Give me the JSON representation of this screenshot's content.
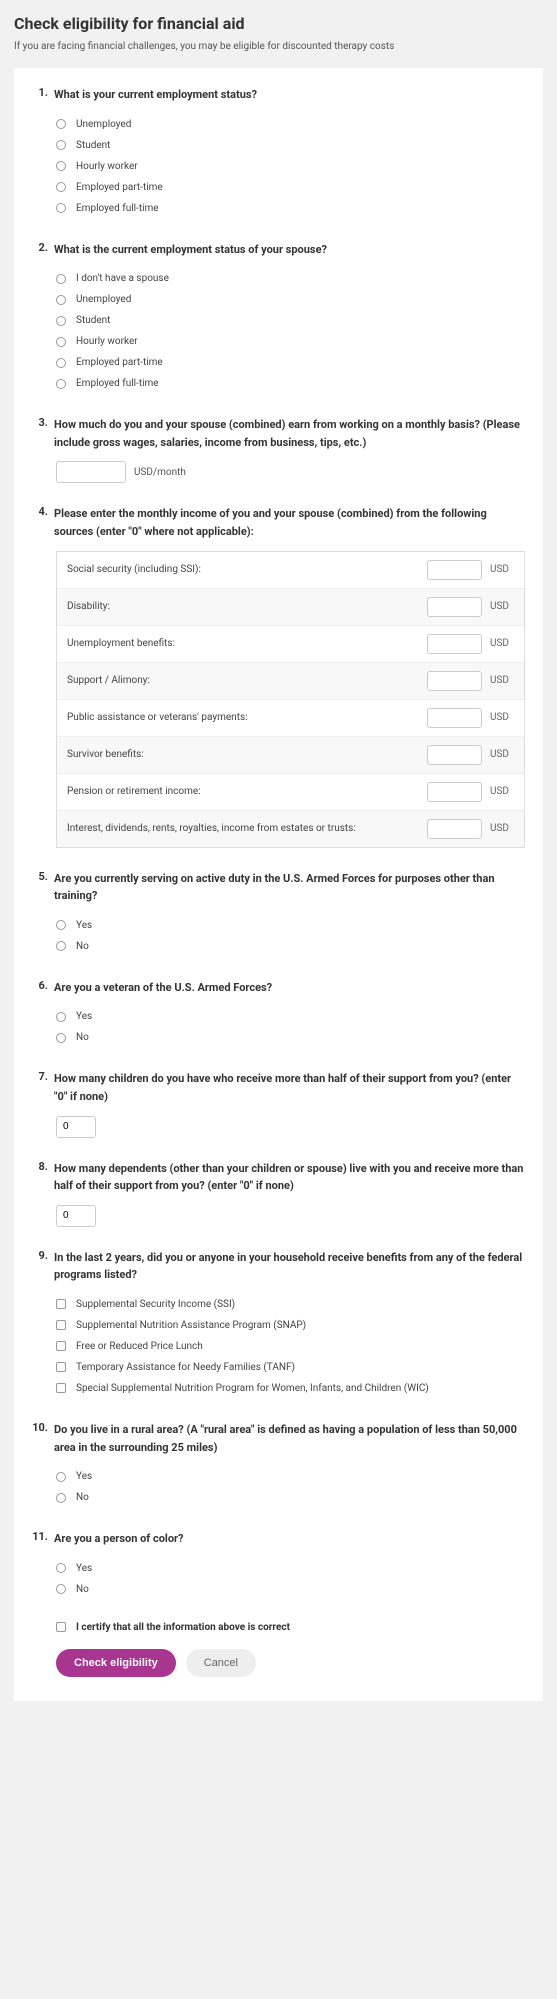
{
  "page": {
    "title": "Check eligibility for financial aid",
    "subtitle": "If you are facing financial challenges, you may be eligible for discounted therapy costs"
  },
  "questions": {
    "q1": {
      "num": "1.",
      "text": "What is your current employment status?",
      "options": [
        "Unemployed",
        "Student",
        "Hourly worker",
        "Employed part-time",
        "Employed full-time"
      ]
    },
    "q2": {
      "num": "2.",
      "text": "What is the current employment status of your spouse?",
      "options": [
        "I don't have a spouse",
        "Unemployed",
        "Student",
        "Hourly worker",
        "Employed part-time",
        "Employed full-time"
      ]
    },
    "q3": {
      "num": "3.",
      "text": "How much do you and your spouse (combined) earn from working on a monthly basis? (Please include gross wages, salaries, income from business, tips, etc.)",
      "suffix": "USD/month"
    },
    "q4": {
      "num": "4.",
      "text": "Please enter the monthly income of you and your spouse (combined) from the following sources (enter \"0\" where not applicable):",
      "rows": [
        "Social security (including SSI):",
        "Disability:",
        "Unemployment benefits:",
        "Support / Alimony:",
        "Public assistance or veterans' payments:",
        "Survivor benefits:",
        "Pension or retirement income:",
        "Interest, dividends, rents, royalties, income from estates or trusts:"
      ],
      "unit": "USD"
    },
    "q5": {
      "num": "5.",
      "text": "Are you currently serving on active duty in the U.S. Armed Forces for purposes other than training?",
      "options": [
        "Yes",
        "No"
      ]
    },
    "q6": {
      "num": "6.",
      "text": "Are you a veteran of the U.S. Armed Forces?",
      "options": [
        "Yes",
        "No"
      ]
    },
    "q7": {
      "num": "7.",
      "text": "How many children do you have who receive more than half of their support from you? (enter \"0\" if none)",
      "value": "0"
    },
    "q8": {
      "num": "8.",
      "text": "How many dependents (other than your children or spouse) live with you and receive more than half of their support from you? (enter \"0\" if none)",
      "value": "0"
    },
    "q9": {
      "num": "9.",
      "text": "In the last 2 years, did you or anyone in your household receive benefits from any of the federal programs listed?",
      "options": [
        "Supplemental Security Income (SSI)",
        "Supplemental Nutrition Assistance Program (SNAP)",
        "Free or Reduced Price Lunch",
        "Temporary Assistance for Needy Families (TANF)",
        "Special Supplemental Nutrition Program for Women, Infants, and Children (WIC)"
      ]
    },
    "q10": {
      "num": "10.",
      "text": "Do you live in a rural area? (A \"rural area\" is defined as having a population of less than 50,000 area in the surrounding 25 miles)",
      "options": [
        "Yes",
        "No"
      ]
    },
    "q11": {
      "num": "11.",
      "text": "Are you a person of color?",
      "options": [
        "Yes",
        "No"
      ]
    }
  },
  "certify": "I certify that all the information above is correct",
  "buttons": {
    "primary": "Check eligibility",
    "cancel": "Cancel"
  }
}
